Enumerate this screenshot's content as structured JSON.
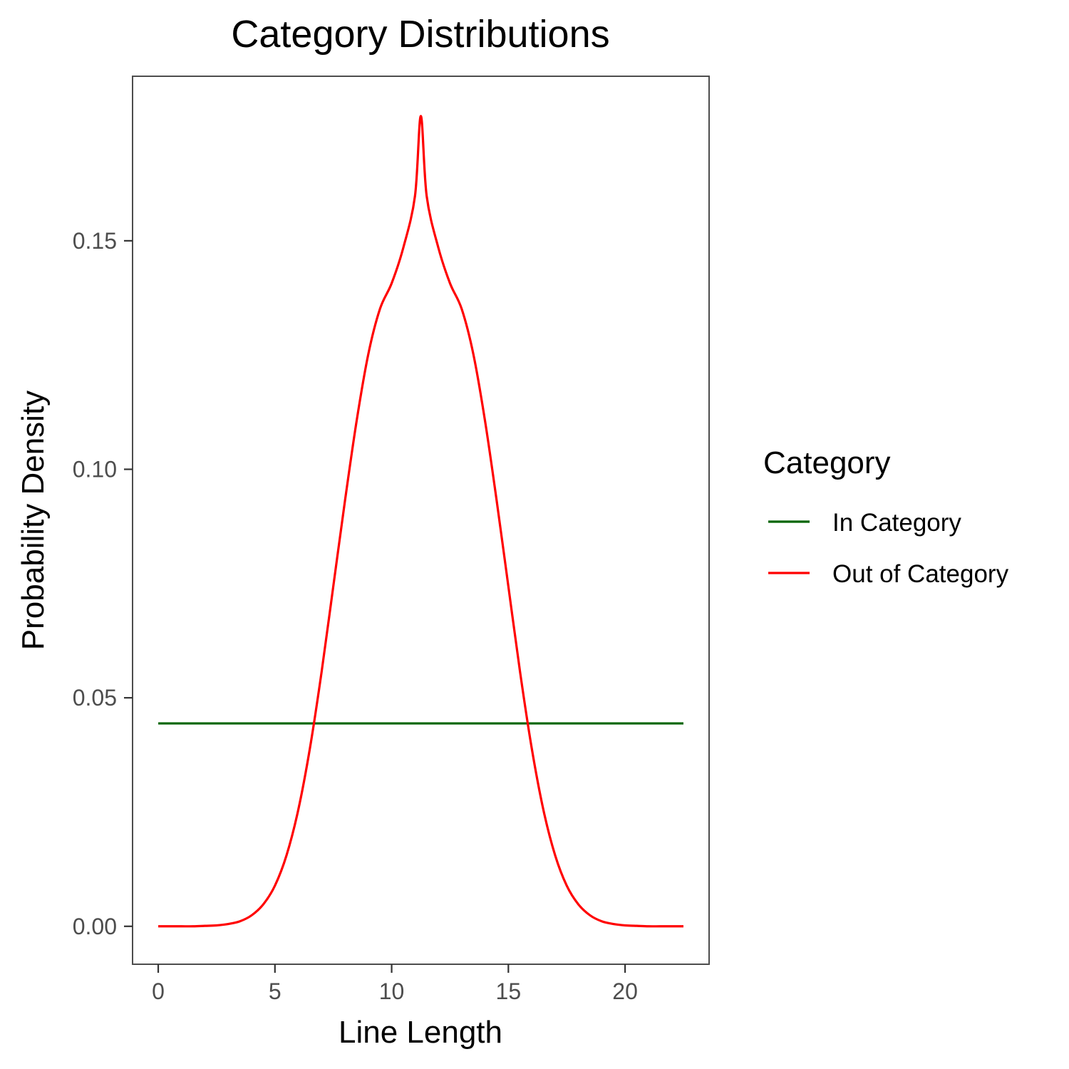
{
  "chart_data": {
    "type": "line",
    "title": "Category Distributions",
    "xlabel": "Line Length",
    "ylabel": "Probability Density",
    "xlim": [
      -1.1,
      23.6
    ],
    "ylim": [
      -0.0083,
      0.186
    ],
    "x_ticks": [
      0,
      5,
      10,
      15,
      20
    ],
    "x_tick_labels": [
      "0",
      "5",
      "10",
      "15",
      "20"
    ],
    "y_ticks": [
      0.0,
      0.05,
      0.1,
      0.15
    ],
    "y_tick_labels": [
      "0.00",
      "0.05",
      "0.10",
      "0.15"
    ],
    "grid": false,
    "legend": {
      "title": "Category",
      "placement": "right",
      "entries": [
        {
          "label": "In Category",
          "color": "#006400"
        },
        {
          "label": "Out of Category",
          "color": "#ff0000"
        }
      ]
    },
    "series": [
      {
        "name": "In Category",
        "color": "#006400",
        "x": [
          0,
          22.5
        ],
        "y": [
          0.0444,
          0.0444
        ]
      },
      {
        "name": "Out of Category",
        "color": "#ff0000",
        "x": [
          0,
          0.5,
          1,
          1.5,
          2,
          2.5,
          3,
          3.5,
          4,
          4.5,
          5,
          5.5,
          6,
          6.5,
          7,
          7.5,
          8,
          8.5,
          9,
          9.5,
          10,
          10.5,
          11,
          11.25,
          11.5,
          12,
          12.5,
          13,
          13.5,
          14,
          14.5,
          15,
          15.5,
          16,
          16.5,
          17,
          17.5,
          18,
          18.5,
          19,
          19.5,
          20,
          20.5,
          21,
          21.5,
          22,
          22.5
        ],
        "y": [
          0.0,
          0.0,
          0.0,
          0.0,
          0.0001,
          0.0002,
          0.0005,
          0.0011,
          0.0024,
          0.0048,
          0.0089,
          0.0156,
          0.0255,
          0.039,
          0.0557,
          0.0744,
          0.0931,
          0.1106,
          0.1252,
          0.1351,
          0.1407,
          0.1485,
          0.1598,
          0.1773,
          0.1598,
          0.1485,
          0.1407,
          0.1351,
          0.1252,
          0.1106,
          0.0931,
          0.0744,
          0.0557,
          0.039,
          0.0255,
          0.0156,
          0.0089,
          0.0048,
          0.0024,
          0.0011,
          0.0005,
          0.0002,
          0.0001,
          0.0,
          0.0,
          0.0,
          0.0
        ]
      }
    ]
  }
}
